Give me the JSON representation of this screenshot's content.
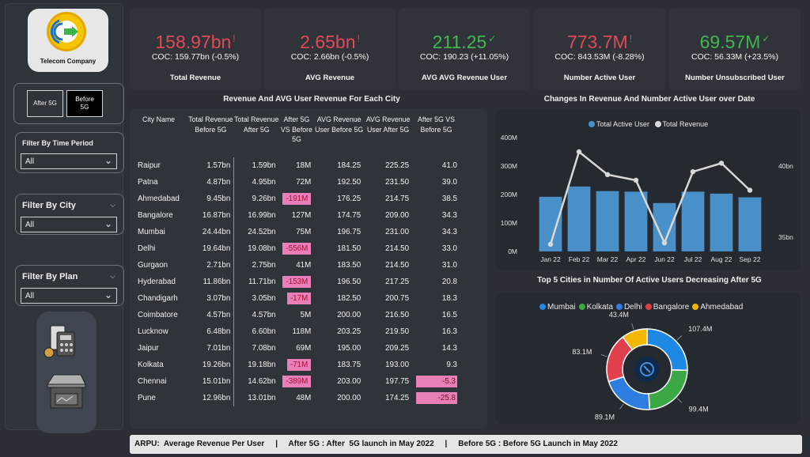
{
  "brand": {
    "name": "Telecom Company"
  },
  "toggle": {
    "after": "After 5G",
    "before": "Before 5G"
  },
  "filters": [
    {
      "label": "Filter By Time Period",
      "value": "All"
    },
    {
      "label": "Filter By City",
      "value": "All"
    },
    {
      "label": "Filter By Plan",
      "value": "All"
    }
  ],
  "kpis": [
    {
      "value": "158.97bn",
      "indicator": "!",
      "coc": "COC: 159.77bn (-0.5%)",
      "label": "Total Revenue",
      "color": "#e04a56"
    },
    {
      "value": "2.65bn",
      "indicator": "!",
      "coc": "COC: 2.66bn (-0.5%)",
      "label": "AVG Revenue",
      "color": "#e04a56"
    },
    {
      "value": "211.25",
      "indicator": "✓",
      "coc": "COC: 190.23 (+11.05%)",
      "label": "AVG AVG Revenue User",
      "color": "#41b64e"
    },
    {
      "value": "773.7M",
      "indicator": "!",
      "coc": "COC: 843.53M (-8.28%)",
      "label": "Number Active User",
      "color": "#e04a56"
    },
    {
      "value": "69.57M",
      "indicator": "✓",
      "coc": "COC: 56.33M (+23.5%)",
      "label": "Number Unsubscribed User",
      "color": "#41b64e"
    }
  ],
  "table": {
    "title": "Revenue And AVG User Revenue For Each City",
    "headers": [
      "City Name",
      "Total Revenue Before 5G",
      "Total Revenue After 5G",
      "After 5G VS Before 5G",
      "AVG Revenue User Before 5G",
      "AVG Revenue User After 5G",
      "After 5G VS Before 5G"
    ],
    "rows": [
      [
        "Raipur",
        "1.57bn",
        "1.59bn",
        "18M",
        "184.25",
        "225.25",
        "41.0"
      ],
      [
        "Patna",
        "4.87bn",
        "4.95bn",
        "72M",
        "192.50",
        "231.50",
        "39.0"
      ],
      [
        "Ahmedabad",
        "9.45bn",
        "9.26bn",
        "-191M",
        "176.25",
        "214.75",
        "38.5"
      ],
      [
        "Bangalore",
        "16.87bn",
        "16.99bn",
        "127M",
        "174.75",
        "209.00",
        "34.3"
      ],
      [
        "Mumbai",
        "24.44bn",
        "24.52bn",
        "75M",
        "196.75",
        "231.00",
        "34.3"
      ],
      [
        "Delhi",
        "19.64bn",
        "19.08bn",
        "-556M",
        "181.50",
        "214.50",
        "33.0"
      ],
      [
        "Gurgaon",
        "2.71bn",
        "2.75bn",
        "41M",
        "183.50",
        "214.50",
        "31.0"
      ],
      [
        "Hyderabad",
        "11.86bn",
        "11.71bn",
        "-153M",
        "196.50",
        "217.25",
        "20.8"
      ],
      [
        "Chandigarh",
        "3.07bn",
        "3.05bn",
        "-17M",
        "182.50",
        "200.75",
        "18.3"
      ],
      [
        "Coimbatore",
        "4.57bn",
        "4.57bn",
        "5M",
        "200.00",
        "216.50",
        "16.5"
      ],
      [
        "Lucknow",
        "6.48bn",
        "6.60bn",
        "118M",
        "203.25",
        "219.50",
        "16.3"
      ],
      [
        "Jaipur",
        "7.01bn",
        "7.08bn",
        "69M",
        "195.00",
        "209.25",
        "14.3"
      ],
      [
        "Kolkata",
        "19.26bn",
        "19.18bn",
        "-71M",
        "183.75",
        "193.00",
        "9.3"
      ],
      [
        "Chennai",
        "15.01bn",
        "14.62bn",
        "-389M",
        "203.00",
        "197.75",
        "-5.3"
      ],
      [
        "Pune",
        "12.96bn",
        "13.01bn",
        "48M",
        "200.00",
        "174.25",
        "-25.8"
      ]
    ]
  },
  "chart_data": [
    {
      "type": "bar",
      "title": "Changes In Revenue And Number Active User over Date",
      "legend": [
        "Total Active User",
        "Total Revenue"
      ],
      "legend_position": "top-center",
      "categories": [
        "Jan 22",
        "Feb 22",
        "Mar 22",
        "Apr 22",
        "Jun 22",
        "Jul 22",
        "Aug 22",
        "Sep 22"
      ],
      "y_ticks": [
        "400M",
        "300M",
        "200M",
        "100M",
        "0M"
      ],
      "y2_ticks": [
        "40bn",
        "35bn"
      ],
      "ylim": [
        0,
        400
      ],
      "y2lim": [
        34,
        42
      ],
      "series": [
        {
          "name": "Total Active User",
          "type": "bar",
          "values": [
            192,
            228,
            212,
            210,
            170,
            210,
            203,
            190
          ],
          "color": "#4a90c8"
        },
        {
          "name": "Total Revenue",
          "type": "line",
          "values": [
            34.5,
            41.0,
            39.4,
            39.0,
            34.6,
            39.6,
            40.2,
            38.3
          ],
          "color": "#d8d8d8"
        }
      ]
    },
    {
      "type": "pie",
      "title": "Top 5 Cities in Number Of Active Users Decreasing After 5G",
      "legend_position": "top-center",
      "labels": [
        "Mumbai",
        "Kolkata",
        "Delhi",
        "Bangalore",
        "Ahmedabad"
      ],
      "values": [
        107.4,
        99.4,
        89.1,
        83.1,
        43.4
      ],
      "value_labels": [
        "107.4M",
        "99.4M",
        "89.1M",
        "83.1M",
        "43.4M"
      ],
      "colors": [
        "#1e88e5",
        "#3aa845",
        "#2e7de0",
        "#e0404e",
        "#f2b705"
      ]
    }
  ],
  "footer": {
    "text": "ARPU:  Average Revenue Per User     |     After 5G : After  5G launch in May 2022     |     Before 5G : Before 5G Launch in May 2022"
  }
}
